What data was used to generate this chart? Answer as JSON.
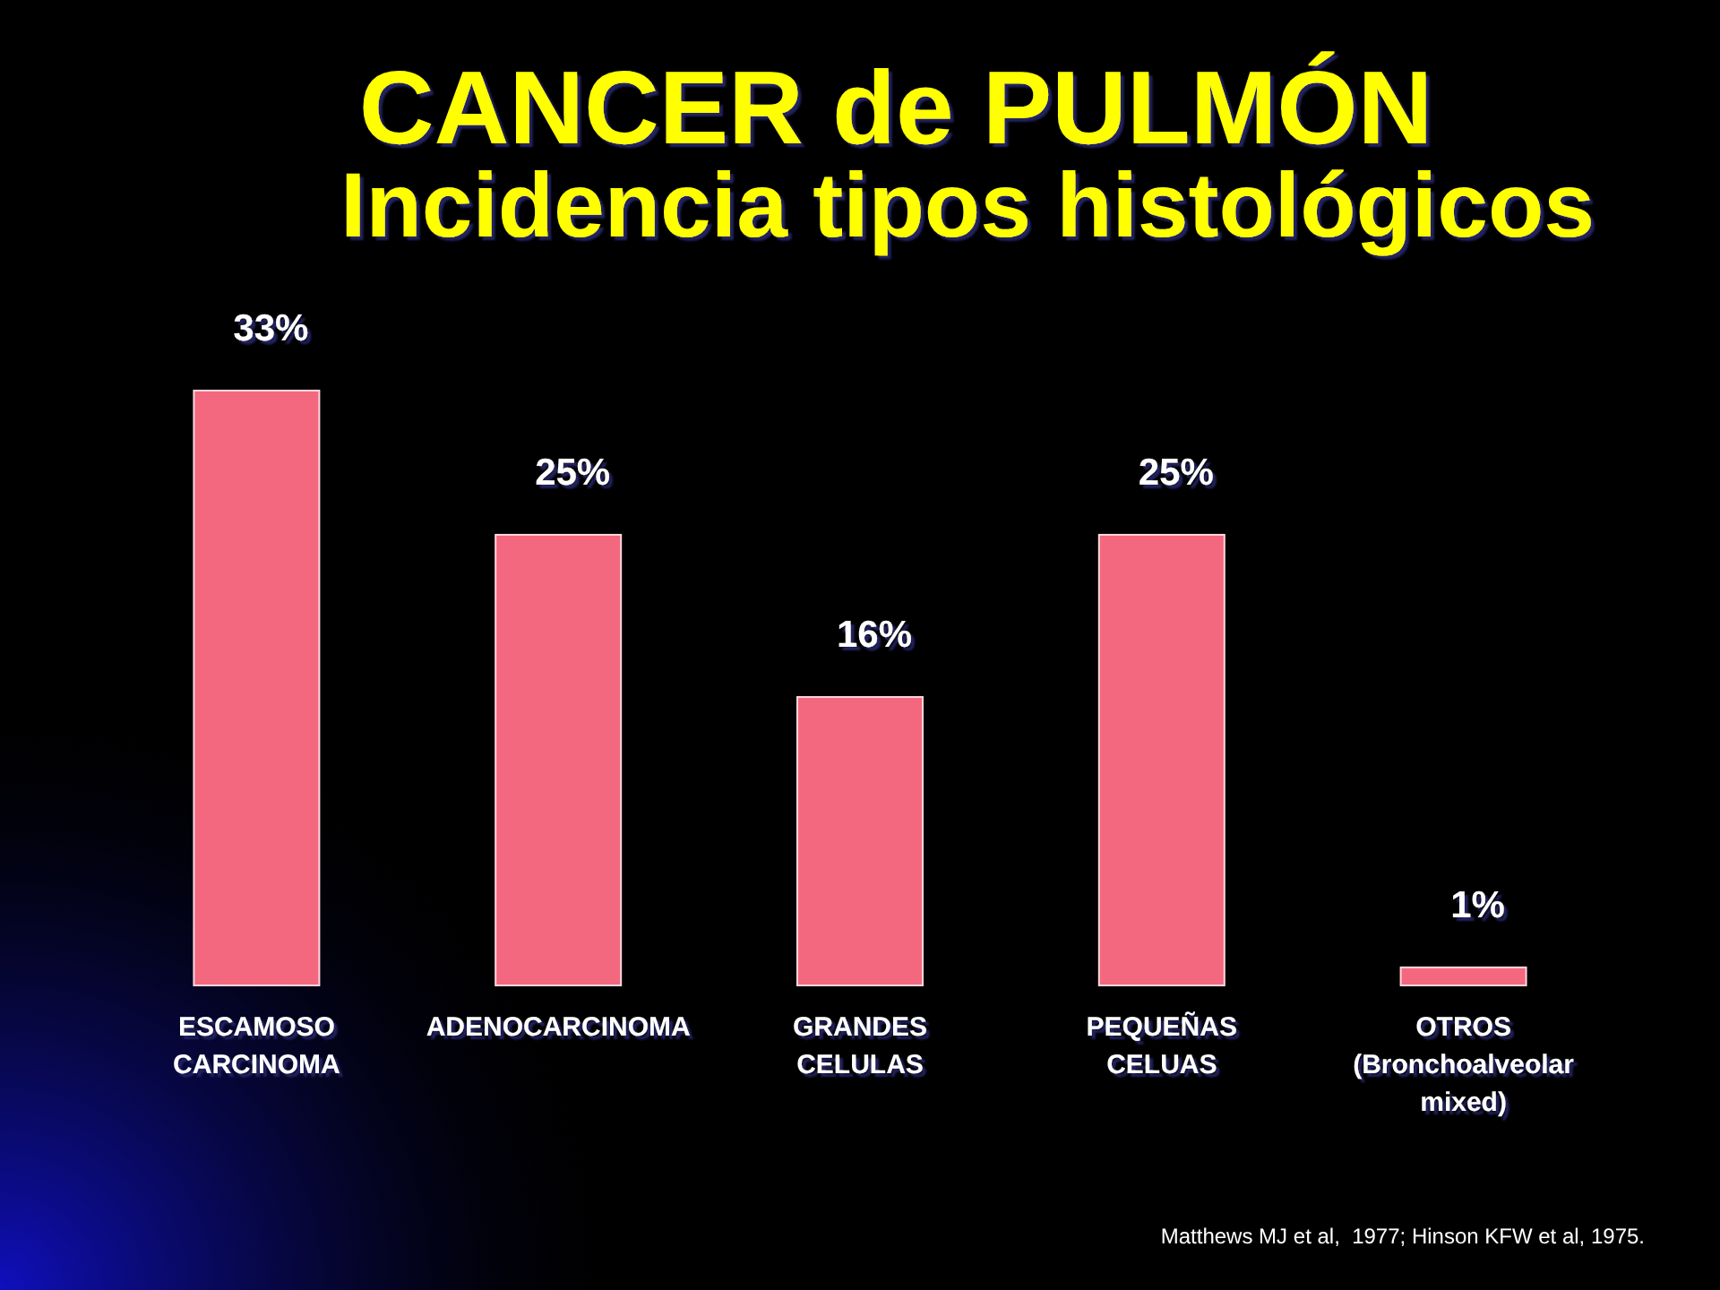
{
  "chart_data": {
    "type": "bar",
    "title": "CANCER de PULMÓN",
    "subtitle": "Incidencia tipos histológicos",
    "categories": [
      "ESCAMOSO CARCINOMA",
      "ADENOCARCINOMA",
      "GRANDES CELULAS",
      "PEQUEÑAS CELUAS",
      "OTROS (Bronchoalveolar mixed)"
    ],
    "values": [
      33,
      25,
      16,
      25,
      1
    ],
    "value_labels": [
      "33%",
      "25%",
      "16%",
      "25%",
      "1%"
    ],
    "color": "#f4687f",
    "annotations": [
      "Matthews MJ et al,  1977; Hinson KFW et al, 1975."
    ]
  }
}
